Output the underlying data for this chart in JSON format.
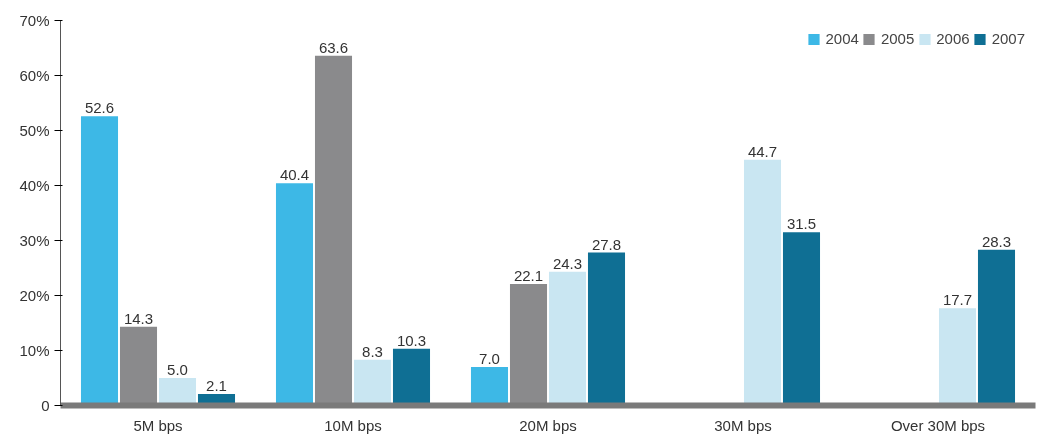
{
  "chart_data": {
    "type": "bar",
    "categories": [
      "5M bps",
      "10M bps",
      "20M bps",
      "30M bps",
      "Over 30M bps"
    ],
    "series": [
      {
        "name": "2004",
        "color": "#3db8e6",
        "values": [
          52.6,
          40.4,
          7.0,
          null,
          null
        ],
        "value_labels": [
          "52.6",
          "40.4",
          "7.0",
          null,
          null
        ]
      },
      {
        "name": "2005",
        "color": "#8a8a8c",
        "values": [
          14.3,
          63.6,
          22.1,
          null,
          null
        ],
        "value_labels": [
          "14.3",
          "63.6",
          "22.1",
          null,
          null
        ]
      },
      {
        "name": "2006",
        "color": "#c9e6f2",
        "values": [
          5.0,
          8.3,
          24.3,
          44.7,
          17.7
        ],
        "value_labels": [
          "5.0",
          "8.3",
          "24.3",
          "44.7",
          "17.7"
        ]
      },
      {
        "name": "2007",
        "color": "#0f6f94",
        "values": [
          2.1,
          10.3,
          27.8,
          31.5,
          28.3
        ],
        "value_labels": [
          "2.1",
          "10.3",
          "27.8",
          "31.5",
          "28.3"
        ]
      }
    ],
    "ylim": [
      0,
      70
    ],
    "yticks": [
      {
        "value": 0,
        "label": "0"
      },
      {
        "value": 10,
        "label": "10%"
      },
      {
        "value": 20,
        "label": "20%"
      },
      {
        "value": 30,
        "label": "30%"
      },
      {
        "value": 40,
        "label": "40%"
      },
      {
        "value": 50,
        "label": "50%"
      },
      {
        "value": 60,
        "label": "60%"
      },
      {
        "value": 70,
        "label": "70%"
      }
    ],
    "grid": false,
    "legend": "top right"
  }
}
